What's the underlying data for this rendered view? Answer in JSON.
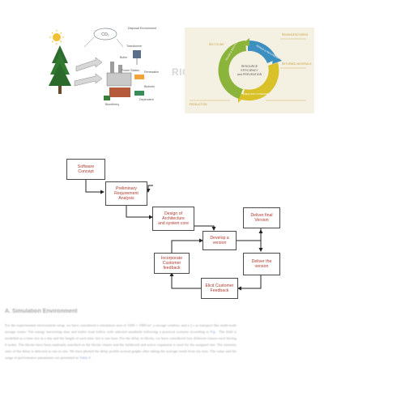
{
  "figure_left": {
    "co2_label": "CO₂",
    "labels": [
      "Disposal\nEnvironment",
      "Transformer",
      "Boiler",
      "Power\nStation",
      "Renewable",
      "Biofuels",
      "Biorefinery",
      "Dependent"
    ]
  },
  "figure_right": {
    "side_label": "RIGS",
    "center_lines": [
      "RESOURCE",
      "EFFICIENCY",
      "and PREVENTION"
    ],
    "segments": [
      "REUSE & RECYCLE",
      "REPAIR & REFURBISH",
      "MAKE AND CONSUME"
    ],
    "corner_notes": [
      "RECYCLING",
      "REMANUFACTURING",
      "RETURNED MATERIALS",
      "PRODUCTION"
    ],
    "colors": {
      "green": "#8bb43a",
      "blue": "#3d8fc0",
      "yellow": "#d9c12a",
      "background": "#f4f1e3"
    }
  },
  "flowchart": {
    "box_color": "#b03a2e",
    "boxes": [
      {
        "id": "software-concept",
        "lines": [
          "Software",
          "Concept"
        ]
      },
      {
        "id": "preliminary-requirement-analysis",
        "lines": [
          "Preliminary",
          "Requirement",
          "Analysis"
        ]
      },
      {
        "id": "design-architecture",
        "lines": [
          "Design of",
          "Architecture",
          "and system core"
        ]
      },
      {
        "id": "develop-version",
        "lines": [
          "Develop a",
          "version"
        ]
      },
      {
        "id": "deliver-final-version",
        "lines": [
          "Deliver final",
          "Version"
        ]
      },
      {
        "id": "deliver-the-version",
        "lines": [
          "Deliver the",
          "version"
        ]
      },
      {
        "id": "elicit-customer-feedback",
        "lines": [
          "Elicit Customer",
          "Feedback"
        ]
      },
      {
        "id": "incorporate-customer-feedback",
        "lines": [
          "Incorporate",
          "Customer",
          "feedback"
        ]
      }
    ]
  },
  "section": {
    "heading": "A. Simulation Environment",
    "paragraph_pre_link": "For the experimental environment setup, we have considered a simulation area of 1000 × 1000 m², a storage window, and a 2 s as transport like multi-node storage center. The energy harvesting time and traffic load follow with selected standards following a practical scenario according to",
    "link1": "Fig",
    "paragraph_mid": ". The field is modelled as a time slot in a day and the length of each time slot is one hour. For the delay in blocks, we have considered four different classes each having 6 nodes. The blocks have been randomly matched on the blocks cluster and the fieldwork and active expansion is used for the assigned rate. The intensity ratio of the delay is detected as one to one. We have plotted the delay profile several graphs after taking the average result from ten runs. The value and the range of performance parameters are presented in",
    "link2": "Table 4",
    "paragraph_end": "."
  }
}
